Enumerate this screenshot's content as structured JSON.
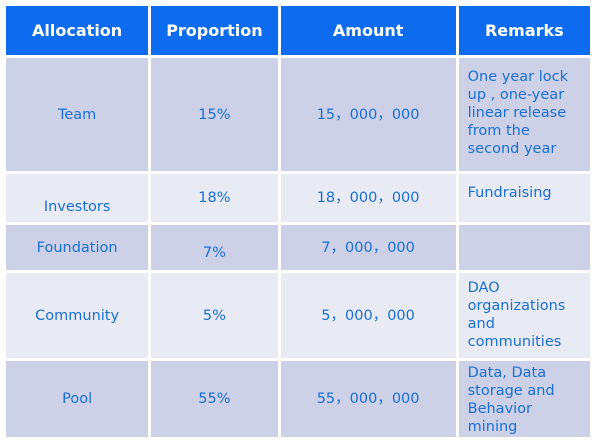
{
  "table": {
    "headers": [
      "Allocation",
      "Proportion",
      "Amount",
      "Remarks"
    ],
    "rows": [
      {
        "allocation": "Team",
        "proportion": "15%",
        "amount": "15，000，000",
        "remarks": "One year lock\nup , one-year\nlinear release\nfrom the\nsecond year"
      },
      {
        "allocation": "Investors",
        "proportion": "18%",
        "amount": "18，000，000",
        "remarks": "Fundraising"
      },
      {
        "allocation": "Foundation",
        "proportion": "7%",
        "amount": "7，000，000",
        "remarks": ""
      },
      {
        "allocation": "Community",
        "proportion": "5%",
        "amount": "5，000，000",
        "remarks": "DAO\norganizations\nand\ncommunities"
      },
      {
        "allocation": "Pool",
        "proportion": "55%",
        "amount": "55，000，000",
        "remarks": "Data, Data\nstorage and\nBehavior\nmining"
      }
    ]
  }
}
